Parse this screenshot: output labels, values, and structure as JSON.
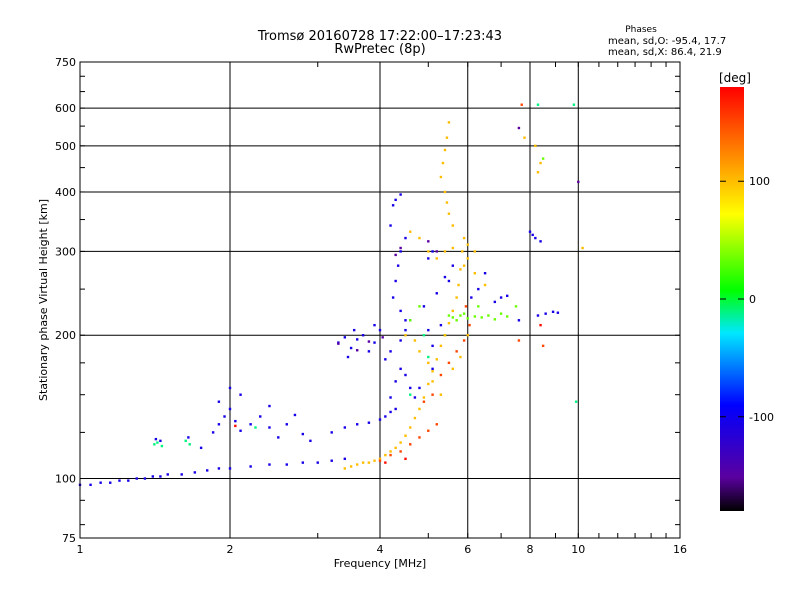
{
  "chart_data": {
    "type": "scatter",
    "title": "Tromsø 20160728 17:22:00–17:23:43",
    "subtitle": "RwPretec (8p)",
    "xlabel": "Frequency [MHz]",
    "ylabel": "Stationary phase Virtual Height [km]",
    "x_scale": "log",
    "y_scale": "log",
    "xlim": [
      1,
      16
    ],
    "ylim": [
      75,
      750
    ],
    "x_ticks": [
      1,
      2,
      4,
      6,
      8,
      10,
      16
    ],
    "y_ticks": [
      75,
      100,
      200,
      300,
      400,
      500,
      600,
      750
    ],
    "grid": true,
    "stats": {
      "heading": "Phases",
      "o_line": "mean, sd,O: -95.4, 17.7",
      "x_line": "mean, sd,X:  86.4, 21.9"
    },
    "colorbar": {
      "label": "[deg]",
      "range": [
        -180,
        180
      ],
      "ticks": [
        100,
        0,
        -100
      ]
    },
    "series": [
      {
        "color_value": -105,
        "points": [
          [
            1.0,
            97
          ],
          [
            1.05,
            97
          ],
          [
            1.1,
            98
          ],
          [
            1.15,
            98
          ],
          [
            1.2,
            99
          ],
          [
            1.25,
            99
          ],
          [
            1.3,
            100
          ],
          [
            1.35,
            100
          ],
          [
            1.4,
            101
          ],
          [
            1.45,
            101
          ],
          [
            1.5,
            102
          ],
          [
            1.6,
            102
          ],
          [
            1.7,
            103
          ],
          [
            1.8,
            104
          ],
          [
            1.9,
            105
          ],
          [
            2.0,
            105
          ],
          [
            2.2,
            106
          ],
          [
            2.4,
            107
          ],
          [
            2.6,
            107
          ],
          [
            2.8,
            108
          ],
          [
            3.0,
            108
          ],
          [
            3.2,
            109
          ],
          [
            3.4,
            110
          ],
          [
            1.42,
            121
          ],
          [
            1.45,
            120
          ],
          [
            1.65,
            122
          ],
          [
            1.75,
            116
          ],
          [
            1.85,
            125
          ],
          [
            1.9,
            130
          ],
          [
            1.95,
            135
          ],
          [
            2.0,
            140
          ],
          [
            2.05,
            132
          ],
          [
            2.1,
            126
          ],
          [
            2.2,
            130
          ],
          [
            2.3,
            135
          ],
          [
            2.4,
            128
          ],
          [
            2.5,
            122
          ],
          [
            2.6,
            130
          ],
          [
            2.7,
            136
          ],
          [
            2.8,
            124
          ],
          [
            2.9,
            120
          ],
          [
            1.9,
            145
          ],
          [
            2.1,
            150
          ],
          [
            2.0,
            155
          ],
          [
            2.4,
            142
          ],
          [
            3.3,
            193
          ],
          [
            3.4,
            198
          ],
          [
            3.5,
            188
          ],
          [
            3.6,
            196
          ],
          [
            3.7,
            200
          ],
          [
            3.8,
            185
          ],
          [
            3.9,
            193
          ],
          [
            4.0,
            205
          ],
          [
            3.45,
            180
          ],
          [
            3.55,
            205
          ],
          [
            3.9,
            210
          ],
          [
            3.2,
            125
          ],
          [
            3.4,
            128
          ],
          [
            3.6,
            130
          ],
          [
            3.8,
            131
          ],
          [
            4.0,
            133
          ],
          [
            4.1,
            135
          ],
          [
            4.2,
            138
          ],
          [
            4.3,
            140
          ],
          [
            4.2,
            148
          ],
          [
            4.3,
            160
          ],
          [
            4.4,
            170
          ],
          [
            4.1,
            178
          ],
          [
            4.2,
            185
          ],
          [
            4.4,
            195
          ],
          [
            4.5,
            205
          ],
          [
            4.6,
            215
          ],
          [
            4.25,
            240
          ],
          [
            4.3,
            260
          ],
          [
            4.35,
            280
          ],
          [
            4.4,
            300
          ],
          [
            4.5,
            320
          ],
          [
            4.2,
            340
          ],
          [
            4.3,
            385
          ],
          [
            4.4,
            395
          ],
          [
            4.25,
            375
          ],
          [
            5.0,
            205
          ],
          [
            5.1,
            190
          ],
          [
            5.3,
            210
          ],
          [
            4.9,
            230
          ],
          [
            5.2,
            245
          ],
          [
            5.4,
            265
          ],
          [
            5.5,
            260
          ],
          [
            5.6,
            280
          ],
          [
            5.0,
            290
          ],
          [
            5.1,
            300
          ],
          [
            4.4,
            225
          ],
          [
            4.5,
            215
          ],
          [
            4.5,
            165
          ],
          [
            4.6,
            155
          ],
          [
            4.7,
            148
          ],
          [
            4.8,
            155
          ],
          [
            5.1,
            170
          ],
          [
            6.1,
            240
          ],
          [
            6.3,
            250
          ],
          [
            6.5,
            270
          ],
          [
            6.8,
            235
          ],
          [
            7.0,
            240
          ],
          [
            7.2,
            242
          ],
          [
            7.6,
            215
          ],
          [
            8.0,
            330
          ],
          [
            8.1,
            325
          ],
          [
            8.2,
            320
          ],
          [
            8.4,
            315
          ],
          [
            8.3,
            220
          ],
          [
            8.6,
            222
          ],
          [
            8.9,
            224
          ],
          [
            9.1,
            223
          ]
        ]
      },
      {
        "color_value": -150,
        "points": [
          [
            3.3,
            192
          ],
          [
            3.6,
            186
          ],
          [
            3.8,
            194
          ],
          [
            4.05,
            198
          ],
          [
            4.3,
            295
          ],
          [
            4.4,
            305
          ],
          [
            5.0,
            315
          ],
          [
            5.2,
            300
          ],
          [
            7.6,
            545
          ],
          [
            10.0,
            420
          ]
        ]
      },
      {
        "color_value": -15,
        "points": [
          [
            1.41,
            118
          ],
          [
            1.43,
            119
          ],
          [
            1.46,
            117
          ],
          [
            1.63,
            120
          ],
          [
            1.66,
            118
          ],
          [
            2.25,
            128
          ],
          [
            4.9,
            200
          ],
          [
            5.0,
            180
          ],
          [
            4.6,
            150
          ],
          [
            8.3,
            610
          ],
          [
            9.9,
            145
          ],
          [
            9.8,
            610
          ]
        ]
      },
      {
        "color_value": 30,
        "points": [
          [
            5.5,
            220
          ],
          [
            5.6,
            218
          ],
          [
            5.7,
            215
          ],
          [
            5.8,
            220
          ],
          [
            5.9,
            222
          ],
          [
            6.0,
            217
          ],
          [
            6.2,
            219
          ],
          [
            6.4,
            218
          ],
          [
            6.6,
            220
          ],
          [
            6.8,
            216
          ],
          [
            7.0,
            222
          ],
          [
            7.2,
            219
          ],
          [
            5.4,
            200
          ],
          [
            6.3,
            230
          ],
          [
            8.5,
            470
          ],
          [
            7.5,
            230
          ],
          [
            4.6,
            215
          ],
          [
            4.8,
            230
          ]
        ]
      },
      {
        "color_value": 100,
        "points": [
          [
            3.4,
            105
          ],
          [
            3.5,
            106
          ],
          [
            3.6,
            107
          ],
          [
            3.7,
            108
          ],
          [
            3.8,
            108
          ],
          [
            3.9,
            109
          ],
          [
            4.0,
            110
          ],
          [
            4.1,
            112
          ],
          [
            4.2,
            114
          ],
          [
            4.3,
            116
          ],
          [
            4.4,
            119
          ],
          [
            4.5,
            123
          ],
          [
            4.6,
            128
          ],
          [
            4.7,
            134
          ],
          [
            4.8,
            140
          ],
          [
            4.9,
            148
          ],
          [
            5.0,
            158
          ],
          [
            5.1,
            168
          ],
          [
            5.2,
            178
          ],
          [
            5.3,
            190
          ],
          [
            5.4,
            200
          ],
          [
            5.5,
            212
          ],
          [
            5.6,
            225
          ],
          [
            5.7,
            240
          ],
          [
            5.75,
            255
          ],
          [
            5.8,
            275
          ],
          [
            5.85,
            300
          ],
          [
            5.9,
            320
          ],
          [
            5.6,
            340
          ],
          [
            5.5,
            360
          ],
          [
            5.45,
            380
          ],
          [
            5.4,
            400
          ],
          [
            5.3,
            430
          ],
          [
            5.35,
            460
          ],
          [
            5.4,
            490
          ],
          [
            5.45,
            520
          ],
          [
            5.5,
            560
          ],
          [
            4.6,
            330
          ],
          [
            4.8,
            320
          ],
          [
            5.0,
            300
          ],
          [
            5.2,
            290
          ],
          [
            5.4,
            300
          ],
          [
            5.6,
            305
          ],
          [
            6.0,
            310
          ],
          [
            6.2,
            300
          ],
          [
            4.5,
            200
          ],
          [
            4.7,
            195
          ],
          [
            4.8,
            185
          ],
          [
            5.0,
            175
          ],
          [
            5.1,
            160
          ],
          [
            5.3,
            150
          ],
          [
            5.6,
            170
          ],
          [
            5.8,
            180
          ],
          [
            6.0,
            200
          ],
          [
            5.9,
            280
          ],
          [
            6.0,
            290
          ],
          [
            6.2,
            270
          ],
          [
            6.5,
            255
          ],
          [
            7.8,
            520
          ],
          [
            8.2,
            500
          ],
          [
            8.4,
            460
          ],
          [
            8.3,
            440
          ],
          [
            10.2,
            305
          ]
        ]
      },
      {
        "color_value": 150,
        "points": [
          [
            4.0,
            109
          ],
          [
            4.2,
            112
          ],
          [
            4.4,
            114
          ],
          [
            4.6,
            118
          ],
          [
            4.8,
            122
          ],
          [
            5.0,
            126
          ],
          [
            5.2,
            130
          ],
          [
            4.9,
            145
          ],
          [
            5.1,
            150
          ],
          [
            5.3,
            165
          ],
          [
            5.5,
            175
          ],
          [
            5.7,
            185
          ],
          [
            5.9,
            195
          ],
          [
            6.05,
            210
          ],
          [
            5.95,
            230
          ],
          [
            8.5,
            190
          ],
          [
            7.6,
            195
          ],
          [
            7.7,
            610
          ]
        ]
      },
      {
        "color_value": 175,
        "points": [
          [
            2.05,
            129
          ],
          [
            4.1,
            108
          ],
          [
            4.5,
            110
          ],
          [
            8.4,
            210
          ]
        ]
      }
    ]
  }
}
